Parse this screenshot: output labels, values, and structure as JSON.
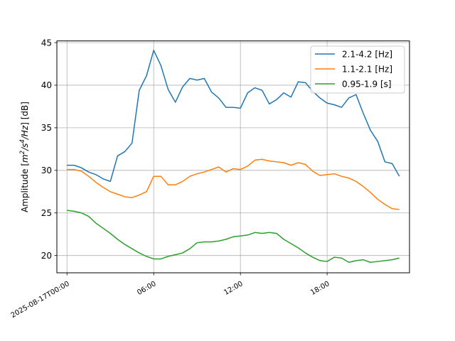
{
  "chart_data": {
    "type": "line",
    "title": "",
    "xlabel": "",
    "ylabel_parts": {
      "main": "Amplitude [",
      "m": "m",
      "exp2": "2",
      "slash1": "/",
      "s": "s",
      "exp4": "4",
      "slash2": "/",
      "hz": "Hz",
      "close": "] [dB]"
    },
    "x_ticks": [
      "2025-08-17T00:00",
      "06:00",
      "12:00",
      "18:00"
    ],
    "x_tick_hours": [
      0,
      6,
      12,
      18
    ],
    "xlim_hours": [
      -0.7,
      23.7
    ],
    "y_ticks": [
      "20",
      "25",
      "30",
      "35",
      "40",
      "45"
    ],
    "y_tick_values": [
      20,
      25,
      30,
      35,
      40,
      45
    ],
    "ylim": [
      17.97,
      45.2
    ],
    "grid": true,
    "legend_position": "top-right",
    "x_hours": [
      0,
      0.5,
      1,
      1.5,
      2,
      2.5,
      3,
      3.5,
      4,
      4.5,
      5,
      5.5,
      6,
      6.5,
      7,
      7.5,
      8,
      8.5,
      9,
      9.5,
      10,
      10.5,
      11,
      11.5,
      12,
      12.5,
      13,
      13.5,
      14,
      14.5,
      15,
      15.5,
      16,
      16.5,
      17,
      17.5,
      18,
      18.5,
      19,
      19.5,
      20,
      20.5,
      21,
      21.5,
      22,
      22.5,
      23
    ],
    "series": [
      {
        "name": "2.1-4.2 [Hz]",
        "color": "#1f77b4",
        "values": [
          30.6,
          30.6,
          30.3,
          29.8,
          29.5,
          29.0,
          28.7,
          31.7,
          32.2,
          33.2,
          39.4,
          41.1,
          44.1,
          42.3,
          39.5,
          38.0,
          39.8,
          40.8,
          40.6,
          40.8,
          39.2,
          38.5,
          37.4,
          37.4,
          37.3,
          39.1,
          39.7,
          39.4,
          37.8,
          38.3,
          39.1,
          38.6,
          40.4,
          40.3,
          39.3,
          38.5,
          37.9,
          37.7,
          37.4,
          38.5,
          38.9,
          36.7,
          34.7,
          33.4,
          31.0,
          30.8,
          29.3
        ]
      },
      {
        "name": "1.1-2.1 [Hz]",
        "color": "#ff7f0e",
        "values": [
          30.1,
          30.1,
          29.9,
          29.3,
          28.6,
          28.0,
          27.5,
          27.2,
          26.9,
          26.8,
          27.1,
          27.5,
          29.3,
          29.3,
          28.3,
          28.3,
          28.7,
          29.3,
          29.6,
          29.8,
          30.1,
          30.4,
          29.8,
          30.2,
          30.1,
          30.5,
          31.2,
          31.3,
          31.1,
          31.0,
          30.9,
          30.6,
          30.9,
          30.7,
          29.9,
          29.4,
          29.5,
          29.6,
          29.3,
          29.1,
          28.7,
          28.1,
          27.4,
          26.6,
          26.0,
          25.5,
          25.4
        ]
      },
      {
        "name": "0.95-1.9 [s]",
        "color": "#2ca02c",
        "values": [
          25.3,
          25.2,
          25.0,
          24.6,
          23.8,
          23.2,
          22.6,
          21.9,
          21.3,
          20.8,
          20.3,
          19.9,
          19.6,
          19.6,
          19.9,
          20.1,
          20.3,
          20.8,
          21.5,
          21.6,
          21.6,
          21.7,
          21.9,
          22.2,
          22.3,
          22.4,
          22.7,
          22.6,
          22.7,
          22.6,
          21.9,
          21.4,
          20.9,
          20.3,
          19.8,
          19.4,
          19.3,
          19.8,
          19.7,
          19.2,
          19.4,
          19.5,
          19.2,
          19.3,
          19.4,
          19.5,
          19.7
        ]
      }
    ]
  }
}
